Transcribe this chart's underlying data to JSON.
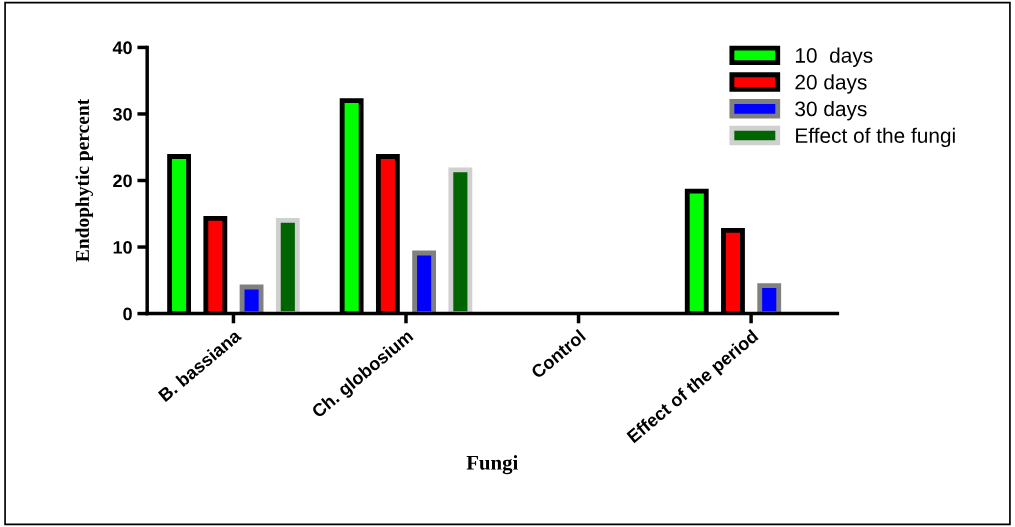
{
  "chart_data": {
    "type": "bar",
    "xlabel": "Fungi",
    "ylabel": "Endophytic percent",
    "categories": [
      "B. bassiana",
      "Ch. globosium",
      "Control",
      "Effect of the period"
    ],
    "series": [
      {
        "name": "10  days",
        "color": "#00ff00",
        "values": [
          23.6,
          32.0,
          null,
          18.4
        ]
      },
      {
        "name": "20 days",
        "color": "#ff0000",
        "values": [
          14.3,
          23.6,
          null,
          12.5
        ]
      },
      {
        "name": "30 days",
        "color": "#0000ff",
        "values": [
          4.0,
          9.1,
          null,
          4.2
        ]
      },
      {
        "name": "Effect of the fungi",
        "color": "#006400",
        "values": [
          14.0,
          21.6,
          null,
          null
        ]
      }
    ],
    "ylim": [
      0,
      40
    ],
    "yticks": [
      0,
      10,
      20,
      30,
      40
    ],
    "grid": false,
    "legend": "top right"
  }
}
